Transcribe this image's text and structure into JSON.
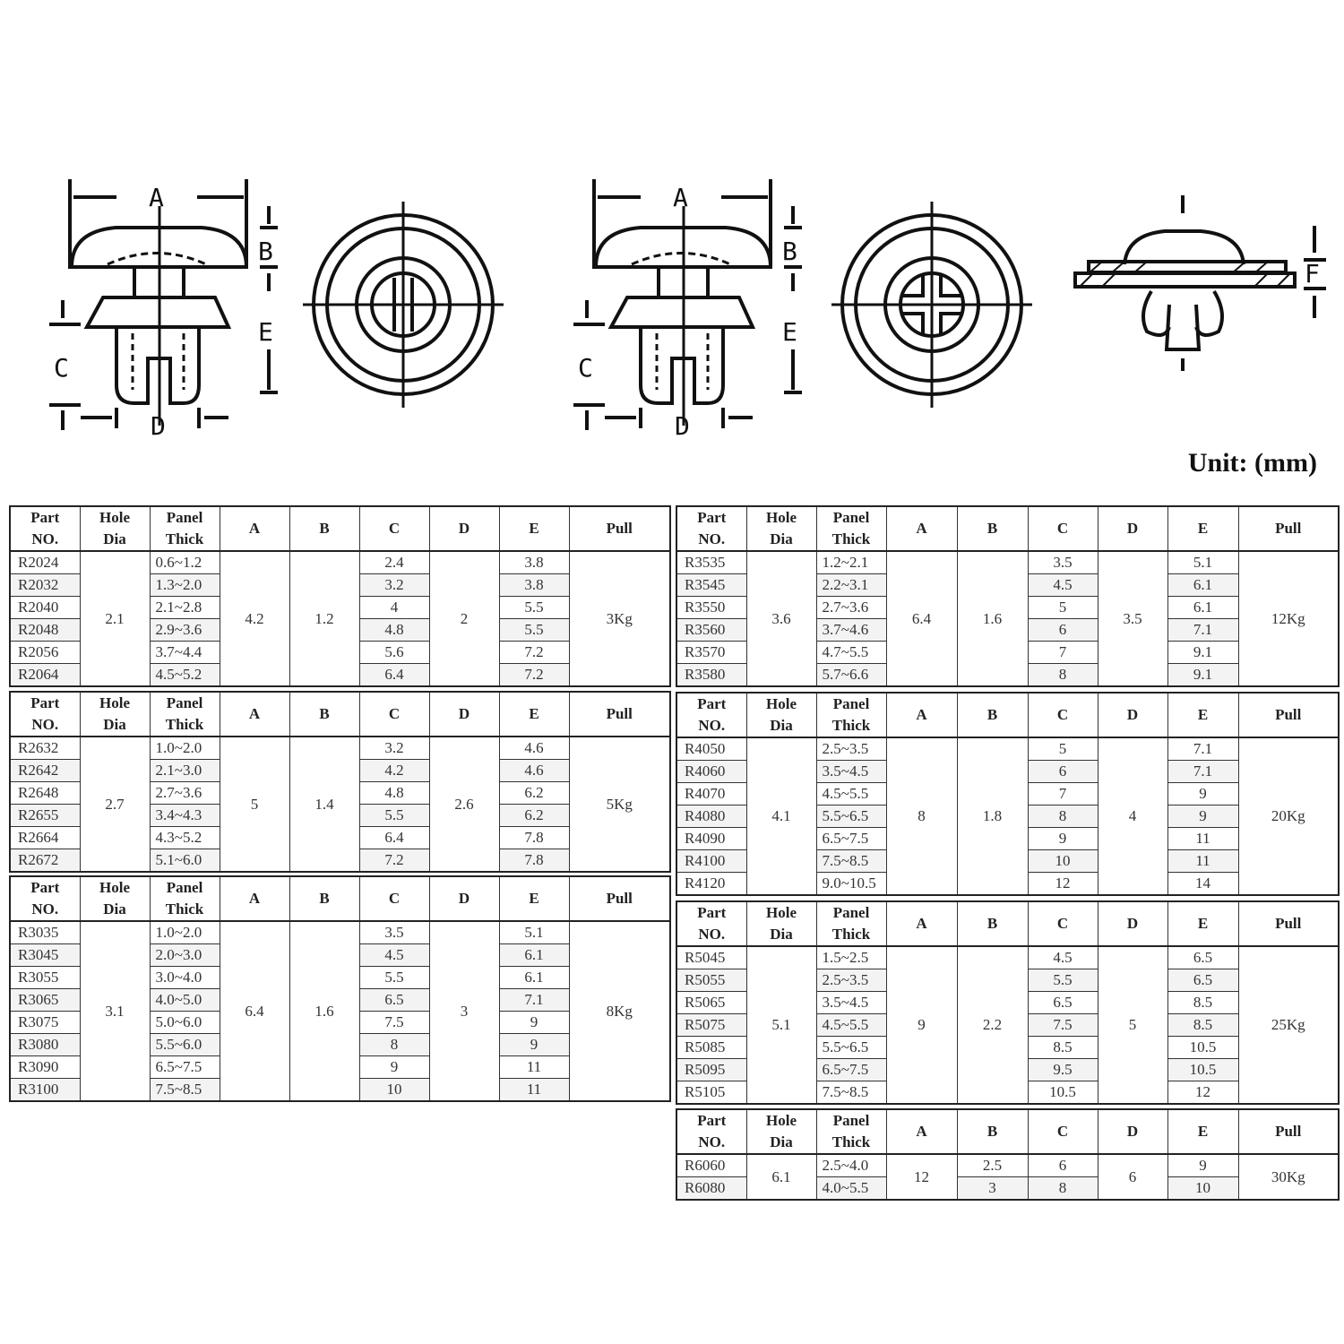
{
  "unit_label": "Unit: (mm)",
  "diagram_labels": {
    "A": "A",
    "B": "B",
    "C": "C",
    "D": "D",
    "E": "E",
    "F": "F"
  },
  "headers": [
    "Part NO.",
    "Hole Dia",
    "Panel Thick",
    "A",
    "B",
    "C",
    "D",
    "E",
    "Pull"
  ],
  "header_lines": [
    [
      "Part",
      "NO."
    ],
    [
      "Hole",
      "Dia"
    ],
    [
      "Panel",
      "Thick"
    ],
    [
      "A"
    ],
    [
      "B"
    ],
    [
      "C"
    ],
    [
      "D"
    ],
    [
      "E"
    ],
    [
      "Pull"
    ]
  ],
  "tables": [
    {
      "hole": "2.1",
      "A": "4.2",
      "B": "1.2",
      "D": "2",
      "pull": "3Kg",
      "rows": [
        [
          "R2024",
          "0.6~1.2",
          "2.4",
          "3.8"
        ],
        [
          "R2032",
          "1.3~2.0",
          "3.2",
          "3.8"
        ],
        [
          "R2040",
          "2.1~2.8",
          "4",
          "5.5"
        ],
        [
          "R2048",
          "2.9~3.6",
          "4.8",
          "5.5"
        ],
        [
          "R2056",
          "3.7~4.4",
          "5.6",
          "7.2"
        ],
        [
          "R2064",
          "4.5~5.2",
          "6.4",
          "7.2"
        ]
      ]
    },
    {
      "hole": "2.7",
      "A": "5",
      "B": "1.4",
      "D": "2.6",
      "pull": "5Kg",
      "rows": [
        [
          "R2632",
          "1.0~2.0",
          "3.2",
          "4.6"
        ],
        [
          "R2642",
          "2.1~3.0",
          "4.2",
          "4.6"
        ],
        [
          "R2648",
          "2.7~3.6",
          "4.8",
          "6.2"
        ],
        [
          "R2655",
          "3.4~4.3",
          "5.5",
          "6.2"
        ],
        [
          "R2664",
          "4.3~5.2",
          "6.4",
          "7.8"
        ],
        [
          "R2672",
          "5.1~6.0",
          "7.2",
          "7.8"
        ]
      ]
    },
    {
      "hole": "3.1",
      "A": "6.4",
      "B": "1.6",
      "D": "3",
      "pull": "8Kg",
      "rows": [
        [
          "R3035",
          "1.0~2.0",
          "3.5",
          "5.1"
        ],
        [
          "R3045",
          "2.0~3.0",
          "4.5",
          "6.1"
        ],
        [
          "R3055",
          "3.0~4.0",
          "5.5",
          "6.1"
        ],
        [
          "R3065",
          "4.0~5.0",
          "6.5",
          "7.1"
        ],
        [
          "R3075",
          "5.0~6.0",
          "7.5",
          "9"
        ],
        [
          "R3080",
          "5.5~6.0",
          "8",
          "9"
        ],
        [
          "R3090",
          "6.5~7.5",
          "9",
          "11"
        ],
        [
          "R3100",
          "7.5~8.5",
          "10",
          "11"
        ]
      ]
    },
    {
      "hole": "3.6",
      "A": "6.4",
      "B": "1.6",
      "D": "3.5",
      "pull": "12Kg",
      "rows": [
        [
          "R3535",
          "1.2~2.1",
          "3.5",
          "5.1"
        ],
        [
          "R3545",
          "2.2~3.1",
          "4.5",
          "6.1"
        ],
        [
          "R3550",
          "2.7~3.6",
          "5",
          "6.1"
        ],
        [
          "R3560",
          "3.7~4.6",
          "6",
          "7.1"
        ],
        [
          "R3570",
          "4.7~5.5",
          "7",
          "9.1"
        ],
        [
          "R3580",
          "5.7~6.6",
          "8",
          "9.1"
        ]
      ]
    },
    {
      "hole": "4.1",
      "A": "8",
      "B": "1.8",
      "D": "4",
      "pull": "20Kg",
      "rows": [
        [
          "R4050",
          "2.5~3.5",
          "5",
          "7.1"
        ],
        [
          "R4060",
          "3.5~4.5",
          "6",
          "7.1"
        ],
        [
          "R4070",
          "4.5~5.5",
          "7",
          "9"
        ],
        [
          "R4080",
          "5.5~6.5",
          "8",
          "9"
        ],
        [
          "R4090",
          "6.5~7.5",
          "9",
          "11"
        ],
        [
          "R4100",
          "7.5~8.5",
          "10",
          "11"
        ],
        [
          "R4120",
          "9.0~10.5",
          "12",
          "14"
        ]
      ]
    },
    {
      "hole": "5.1",
      "A": "9",
      "B": "2.2",
      "D": "5",
      "pull": "25Kg",
      "rows": [
        [
          "R5045",
          "1.5~2.5",
          "4.5",
          "6.5"
        ],
        [
          "R5055",
          "2.5~3.5",
          "5.5",
          "6.5"
        ],
        [
          "R5065",
          "3.5~4.5",
          "6.5",
          "8.5"
        ],
        [
          "R5075",
          "4.5~5.5",
          "7.5",
          "8.5"
        ],
        [
          "R5085",
          "5.5~6.5",
          "8.5",
          "10.5"
        ],
        [
          "R5095",
          "6.5~7.5",
          "9.5",
          "10.5"
        ],
        [
          "R5105",
          "7.5~8.5",
          "10.5",
          "12"
        ]
      ]
    },
    {
      "hole": "6.1",
      "A": "12",
      "B_rows": [
        "2.5",
        "3"
      ],
      "D": "6",
      "pull": "30Kg",
      "rows": [
        [
          "R6060",
          "2.5~4.0",
          "6",
          "9"
        ],
        [
          "R6080",
          "4.0~5.5",
          "8",
          "10"
        ]
      ]
    }
  ]
}
